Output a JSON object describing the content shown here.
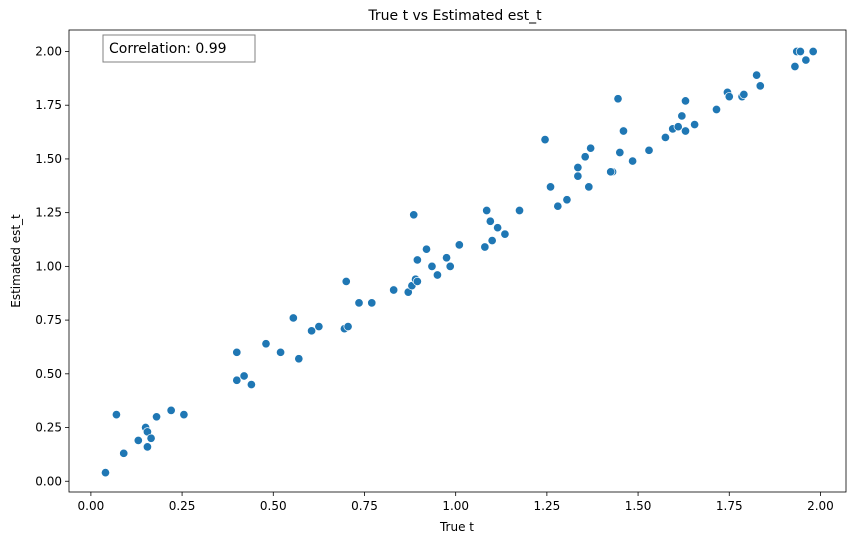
{
  "chart_data": {
    "type": "scatter",
    "title": "True t vs Estimated est_t",
    "xlabel": "True t",
    "ylabel": "Estimated est_t",
    "xlim": [
      -0.06,
      2.07
    ],
    "ylim": [
      -0.05,
      2.1
    ],
    "xticks": [
      "0.00",
      "0.25",
      "0.50",
      "0.75",
      "1.00",
      "1.25",
      "1.50",
      "1.75",
      "2.00"
    ],
    "yticks": [
      "0.00",
      "0.25",
      "0.50",
      "0.75",
      "1.00",
      "1.25",
      "1.50",
      "1.75",
      "2.00"
    ],
    "grid": false,
    "annotation": "Correlation: 0.99",
    "annotation_position": "top-left",
    "marker_color": "#1f77b4",
    "x": [
      0.04,
      0.07,
      0.09,
      0.13,
      0.15,
      0.155,
      0.155,
      0.165,
      0.18,
      0.22,
      0.255,
      0.4,
      0.4,
      0.42,
      0.44,
      0.48,
      0.52,
      0.555,
      0.57,
      0.605,
      0.625,
      0.695,
      0.7,
      0.705,
      0.735,
      0.77,
      0.83,
      0.87,
      0.88,
      0.885,
      0.89,
      0.895,
      0.895,
      0.92,
      0.935,
      0.95,
      0.975,
      0.985,
      1.01,
      1.08,
      1.085,
      1.095,
      1.1,
      1.115,
      1.135,
      1.175,
      1.245,
      1.26,
      1.28,
      1.305,
      1.335,
      1.335,
      1.355,
      1.365,
      1.37,
      1.43,
      1.425,
      1.445,
      1.45,
      1.46,
      1.485,
      1.53,
      1.575,
      1.595,
      1.61,
      1.62,
      1.63,
      1.63,
      1.655,
      1.715,
      1.745,
      1.75,
      1.785,
      1.79,
      1.825,
      1.835,
      1.93,
      1.935,
      1.945,
      1.96,
      1.98
    ],
    "y": [
      0.04,
      0.31,
      0.13,
      0.19,
      0.25,
      0.16,
      0.23,
      0.2,
      0.3,
      0.33,
      0.31,
      0.47,
      0.6,
      0.49,
      0.45,
      0.64,
      0.6,
      0.76,
      0.57,
      0.7,
      0.72,
      0.71,
      0.93,
      0.72,
      0.83,
      0.83,
      0.89,
      0.88,
      0.91,
      1.24,
      0.94,
      0.93,
      1.03,
      1.08,
      1.0,
      0.96,
      1.04,
      1.0,
      1.1,
      1.09,
      1.26,
      1.21,
      1.12,
      1.18,
      1.15,
      1.26,
      1.59,
      1.37,
      1.28,
      1.31,
      1.42,
      1.46,
      1.51,
      1.37,
      1.55,
      1.44,
      1.44,
      1.78,
      1.53,
      1.63,
      1.49,
      1.54,
      1.6,
      1.64,
      1.65,
      1.7,
      1.63,
      1.77,
      1.66,
      1.73,
      1.81,
      1.79,
      1.79,
      1.8,
      1.89,
      1.84,
      1.93,
      2.0,
      2.0,
      1.96,
      2.0
    ]
  }
}
